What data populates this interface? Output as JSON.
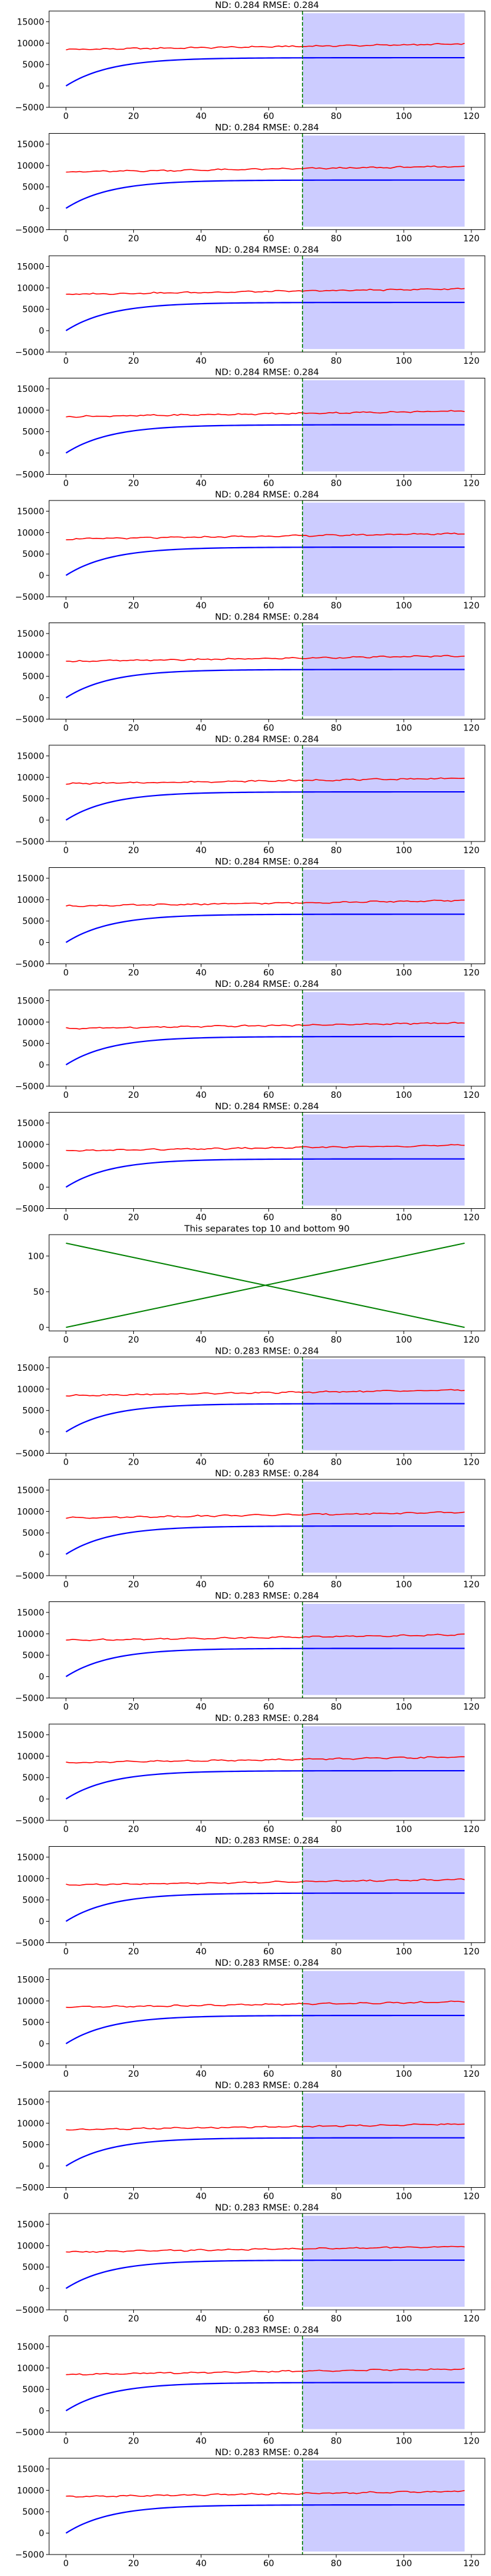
{
  "chart_data": [
    {
      "type": "line",
      "title": "ND:  0.284 RMSE:  0.284",
      "xlim": [
        -5,
        124
      ],
      "ylim": [
        -5000,
        17500
      ],
      "xticks": [
        "0",
        "20",
        "40",
        "60",
        "80",
        "100",
        "120"
      ],
      "yticks": [
        "−5000",
        "0",
        "5000",
        "10000",
        "15000"
      ],
      "forecast_start": 70,
      "shaded_x": [
        70,
        118
      ],
      "shaded_y": [
        -4300,
        17000
      ],
      "red_series": {
        "x_range": [
          0,
          118
        ],
        "start": 8500,
        "end": 9800
      },
      "blue_series": {
        "x_range": [
          0,
          118
        ],
        "start": 0,
        "plateau": 6600
      },
      "colors": {
        "red": "#ff0000",
        "blue": "#0000ff",
        "vline": "#008000",
        "shade": "#ccccff"
      }
    },
    {
      "type": "line",
      "title": "ND:  0.284 RMSE:  0.284",
      "xlim": [
        -5,
        124
      ],
      "ylim": [
        -5000,
        17500
      ],
      "xticks": [
        "0",
        "20",
        "40",
        "60",
        "80",
        "100",
        "120"
      ],
      "yticks": [
        "−5000",
        "0",
        "5000",
        "10000",
        "15000"
      ],
      "forecast_start": 70,
      "shaded_x": [
        70,
        118
      ],
      "shaded_y": [
        -4300,
        17000
      ],
      "red_series": {
        "x_range": [
          0,
          118
        ],
        "start": 8500,
        "end": 9800
      },
      "blue_series": {
        "x_range": [
          0,
          118
        ],
        "start": 0,
        "plateau": 6600
      },
      "colors": {
        "red": "#ff0000",
        "blue": "#0000ff",
        "vline": "#008000",
        "shade": "#ccccff"
      }
    },
    {
      "type": "line",
      "title": "ND:  0.284 RMSE:  0.284",
      "xlim": [
        -5,
        124
      ],
      "ylim": [
        -5000,
        17500
      ],
      "xticks": [
        "0",
        "20",
        "40",
        "60",
        "80",
        "100",
        "120"
      ],
      "yticks": [
        "−5000",
        "0",
        "5000",
        "10000",
        "15000"
      ],
      "forecast_start": 70,
      "shaded_x": [
        70,
        118
      ],
      "shaded_y": [
        -4300,
        17000
      ],
      "red_series": {
        "x_range": [
          0,
          118
        ],
        "start": 8500,
        "end": 9800
      },
      "blue_series": {
        "x_range": [
          0,
          118
        ],
        "start": 0,
        "plateau": 6600
      },
      "colors": {
        "red": "#ff0000",
        "blue": "#0000ff",
        "vline": "#008000",
        "shade": "#ccccff"
      }
    },
    {
      "type": "line",
      "title": "ND:  0.284 RMSE:  0.284",
      "xlim": [
        -5,
        124
      ],
      "ylim": [
        -5000,
        17500
      ],
      "xticks": [
        "0",
        "20",
        "40",
        "60",
        "80",
        "100",
        "120"
      ],
      "yticks": [
        "−5000",
        "0",
        "5000",
        "10000",
        "15000"
      ],
      "forecast_start": 70,
      "shaded_x": [
        70,
        118
      ],
      "shaded_y": [
        -4300,
        17000
      ],
      "red_series": {
        "x_range": [
          0,
          118
        ],
        "start": 8500,
        "end": 9800
      },
      "blue_series": {
        "x_range": [
          0,
          118
        ],
        "start": 0,
        "plateau": 6600
      },
      "colors": {
        "red": "#ff0000",
        "blue": "#0000ff",
        "vline": "#008000",
        "shade": "#ccccff"
      }
    },
    {
      "type": "line",
      "title": "ND:  0.284 RMSE:  0.284",
      "xlim": [
        -5,
        124
      ],
      "ylim": [
        -5000,
        17500
      ],
      "xticks": [
        "0",
        "20",
        "40",
        "60",
        "80",
        "100",
        "120"
      ],
      "yticks": [
        "−5000",
        "0",
        "5000",
        "10000",
        "15000"
      ],
      "forecast_start": 70,
      "shaded_x": [
        70,
        118
      ],
      "shaded_y": [
        -4300,
        17000
      ],
      "red_series": {
        "x_range": [
          0,
          118
        ],
        "start": 8500,
        "end": 9800
      },
      "blue_series": {
        "x_range": [
          0,
          118
        ],
        "start": 0,
        "plateau": 6600
      },
      "colors": {
        "red": "#ff0000",
        "blue": "#0000ff",
        "vline": "#008000",
        "shade": "#ccccff"
      }
    },
    {
      "type": "line",
      "title": "ND:  0.284 RMSE:  0.284",
      "xlim": [
        -5,
        124
      ],
      "ylim": [
        -5000,
        17500
      ],
      "xticks": [
        "0",
        "20",
        "40",
        "60",
        "80",
        "100",
        "120"
      ],
      "yticks": [
        "−5000",
        "0",
        "5000",
        "10000",
        "15000"
      ],
      "forecast_start": 70,
      "shaded_x": [
        70,
        118
      ],
      "shaded_y": [
        -4300,
        17000
      ],
      "red_series": {
        "x_range": [
          0,
          118
        ],
        "start": 8500,
        "end": 9800
      },
      "blue_series": {
        "x_range": [
          0,
          118
        ],
        "start": 0,
        "plateau": 6600
      },
      "colors": {
        "red": "#ff0000",
        "blue": "#0000ff",
        "vline": "#008000",
        "shade": "#ccccff"
      }
    },
    {
      "type": "line",
      "title": "ND:  0.284 RMSE:  0.284",
      "xlim": [
        -5,
        124
      ],
      "ylim": [
        -5000,
        17500
      ],
      "xticks": [
        "0",
        "20",
        "40",
        "60",
        "80",
        "100",
        "120"
      ],
      "yticks": [
        "−5000",
        "0",
        "5000",
        "10000",
        "15000"
      ],
      "forecast_start": 70,
      "shaded_x": [
        70,
        118
      ],
      "shaded_y": [
        -4300,
        17000
      ],
      "red_series": {
        "x_range": [
          0,
          118
        ],
        "start": 8500,
        "end": 9800
      },
      "blue_series": {
        "x_range": [
          0,
          118
        ],
        "start": 0,
        "plateau": 6600
      },
      "colors": {
        "red": "#ff0000",
        "blue": "#0000ff",
        "vline": "#008000",
        "shade": "#ccccff"
      }
    },
    {
      "type": "line",
      "title": "ND:  0.284 RMSE:  0.284",
      "xlim": [
        -5,
        124
      ],
      "ylim": [
        -5000,
        17500
      ],
      "xticks": [
        "0",
        "20",
        "40",
        "60",
        "80",
        "100",
        "120"
      ],
      "yticks": [
        "−5000",
        "0",
        "5000",
        "10000",
        "15000"
      ],
      "forecast_start": 70,
      "shaded_x": [
        70,
        118
      ],
      "shaded_y": [
        -4300,
        17000
      ],
      "red_series": {
        "x_range": [
          0,
          118
        ],
        "start": 8500,
        "end": 9800
      },
      "blue_series": {
        "x_range": [
          0,
          118
        ],
        "start": 0,
        "plateau": 6600
      },
      "colors": {
        "red": "#ff0000",
        "blue": "#0000ff",
        "vline": "#008000",
        "shade": "#ccccff"
      }
    },
    {
      "type": "line",
      "title": "ND:  0.284 RMSE:  0.284",
      "xlim": [
        -5,
        124
      ],
      "ylim": [
        -5000,
        17500
      ],
      "xticks": [
        "0",
        "20",
        "40",
        "60",
        "80",
        "100",
        "120"
      ],
      "yticks": [
        "−5000",
        "0",
        "5000",
        "10000",
        "15000"
      ],
      "forecast_start": 70,
      "shaded_x": [
        70,
        118
      ],
      "shaded_y": [
        -4300,
        17000
      ],
      "red_series": {
        "x_range": [
          0,
          118
        ],
        "start": 8500,
        "end": 9800
      },
      "blue_series": {
        "x_range": [
          0,
          118
        ],
        "start": 0,
        "plateau": 6600
      },
      "colors": {
        "red": "#ff0000",
        "blue": "#0000ff",
        "vline": "#008000",
        "shade": "#ccccff"
      }
    },
    {
      "type": "line",
      "title": "ND:  0.284 RMSE:  0.284",
      "xlim": [
        -5,
        124
      ],
      "ylim": [
        -5000,
        17500
      ],
      "xticks": [
        "0",
        "20",
        "40",
        "60",
        "80",
        "100",
        "120"
      ],
      "yticks": [
        "−5000",
        "0",
        "5000",
        "10000",
        "15000"
      ],
      "forecast_start": 70,
      "shaded_x": [
        70,
        118
      ],
      "shaded_y": [
        -4300,
        17000
      ],
      "red_series": {
        "x_range": [
          0,
          118
        ],
        "start": 8500,
        "end": 9800
      },
      "blue_series": {
        "x_range": [
          0,
          118
        ],
        "start": 0,
        "plateau": 6600
      },
      "colors": {
        "red": "#ff0000",
        "blue": "#0000ff",
        "vline": "#008000",
        "shade": "#ccccff"
      }
    },
    {
      "type": "line",
      "title": "This separates top 10 and bottom 90",
      "xlim": [
        -5,
        124
      ],
      "ylim": [
        -5,
        130
      ],
      "xticks": [
        "0",
        "20",
        "40",
        "60",
        "80",
        "100",
        "120"
      ],
      "yticks": [
        "0",
        "50",
        "100"
      ],
      "series": [
        {
          "x": [
            0,
            118
          ],
          "values": [
            0,
            118
          ]
        },
        {
          "x": [
            0,
            118
          ],
          "values": [
            118,
            0
          ]
        }
      ],
      "colors": {
        "line": "#008000"
      }
    },
    {
      "type": "line",
      "title": "ND:  0.283 RMSE:  0.284",
      "xlim": [
        -5,
        124
      ],
      "ylim": [
        -5000,
        17500
      ],
      "xticks": [
        "0",
        "20",
        "40",
        "60",
        "80",
        "100",
        "120"
      ],
      "yticks": [
        "−5000",
        "0",
        "5000",
        "10000",
        "15000"
      ],
      "forecast_start": 70,
      "shaded_x": [
        70,
        118
      ],
      "shaded_y": [
        -4300,
        17000
      ],
      "red_series": {
        "x_range": [
          0,
          118
        ],
        "start": 8500,
        "end": 9800
      },
      "blue_series": {
        "x_range": [
          0,
          118
        ],
        "start": 0,
        "plateau": 6600
      },
      "colors": {
        "red": "#ff0000",
        "blue": "#0000ff",
        "vline": "#008000",
        "shade": "#ccccff"
      }
    },
    {
      "type": "line",
      "title": "ND:  0.283 RMSE:  0.284",
      "xlim": [
        -5,
        124
      ],
      "ylim": [
        -5000,
        17500
      ],
      "xticks": [
        "0",
        "20",
        "40",
        "60",
        "80",
        "100",
        "120"
      ],
      "yticks": [
        "−5000",
        "0",
        "5000",
        "10000",
        "15000"
      ],
      "forecast_start": 70,
      "shaded_x": [
        70,
        118
      ],
      "shaded_y": [
        -4300,
        17000
      ],
      "red_series": {
        "x_range": [
          0,
          118
        ],
        "start": 8500,
        "end": 9800
      },
      "blue_series": {
        "x_range": [
          0,
          118
        ],
        "start": 0,
        "plateau": 6600
      },
      "colors": {
        "red": "#ff0000",
        "blue": "#0000ff",
        "vline": "#008000",
        "shade": "#ccccff"
      }
    },
    {
      "type": "line",
      "title": "ND:  0.283 RMSE:  0.284",
      "xlim": [
        -5,
        124
      ],
      "ylim": [
        -5000,
        17500
      ],
      "xticks": [
        "0",
        "20",
        "40",
        "60",
        "80",
        "100",
        "120"
      ],
      "yticks": [
        "−5000",
        "0",
        "5000",
        "10000",
        "15000"
      ],
      "forecast_start": 70,
      "shaded_x": [
        70,
        118
      ],
      "shaded_y": [
        -4300,
        17000
      ],
      "red_series": {
        "x_range": [
          0,
          118
        ],
        "start": 8500,
        "end": 9800
      },
      "blue_series": {
        "x_range": [
          0,
          118
        ],
        "start": 0,
        "plateau": 6600
      },
      "colors": {
        "red": "#ff0000",
        "blue": "#0000ff",
        "vline": "#008000",
        "shade": "#ccccff"
      }
    },
    {
      "type": "line",
      "title": "ND:  0.283 RMSE:  0.284",
      "xlim": [
        -5,
        124
      ],
      "ylim": [
        -5000,
        17500
      ],
      "xticks": [
        "0",
        "20",
        "40",
        "60",
        "80",
        "100",
        "120"
      ],
      "yticks": [
        "−5000",
        "0",
        "5000",
        "10000",
        "15000"
      ],
      "forecast_start": 70,
      "shaded_x": [
        70,
        118
      ],
      "shaded_y": [
        -4300,
        17000
      ],
      "red_series": {
        "x_range": [
          0,
          118
        ],
        "start": 8500,
        "end": 9800
      },
      "blue_series": {
        "x_range": [
          0,
          118
        ],
        "start": 0,
        "plateau": 6600
      },
      "colors": {
        "red": "#ff0000",
        "blue": "#0000ff",
        "vline": "#008000",
        "shade": "#ccccff"
      }
    },
    {
      "type": "line",
      "title": "ND:  0.283 RMSE:  0.284",
      "xlim": [
        -5,
        124
      ],
      "ylim": [
        -5000,
        17500
      ],
      "xticks": [
        "0",
        "20",
        "40",
        "60",
        "80",
        "100",
        "120"
      ],
      "yticks": [
        "−5000",
        "0",
        "5000",
        "10000",
        "15000"
      ],
      "forecast_start": 70,
      "shaded_x": [
        70,
        118
      ],
      "shaded_y": [
        -4300,
        17000
      ],
      "red_series": {
        "x_range": [
          0,
          118
        ],
        "start": 8500,
        "end": 9800
      },
      "blue_series": {
        "x_range": [
          0,
          118
        ],
        "start": 0,
        "plateau": 6600
      },
      "colors": {
        "red": "#ff0000",
        "blue": "#0000ff",
        "vline": "#008000",
        "shade": "#ccccff"
      }
    },
    {
      "type": "line",
      "title": "ND:  0.283 RMSE:  0.284",
      "xlim": [
        -5,
        124
      ],
      "ylim": [
        -5000,
        17500
      ],
      "xticks": [
        "0",
        "20",
        "40",
        "60",
        "80",
        "100",
        "120"
      ],
      "yticks": [
        "−5000",
        "0",
        "5000",
        "10000",
        "15000"
      ],
      "forecast_start": 70,
      "shaded_x": [
        70,
        118
      ],
      "shaded_y": [
        -4300,
        17000
      ],
      "red_series": {
        "x_range": [
          0,
          118
        ],
        "start": 8500,
        "end": 9800
      },
      "blue_series": {
        "x_range": [
          0,
          118
        ],
        "start": 0,
        "plateau": 6600
      },
      "colors": {
        "red": "#ff0000",
        "blue": "#0000ff",
        "vline": "#008000",
        "shade": "#ccccff"
      }
    },
    {
      "type": "line",
      "title": "ND:  0.283 RMSE:  0.284",
      "xlim": [
        -5,
        124
      ],
      "ylim": [
        -5000,
        17500
      ],
      "xticks": [
        "0",
        "20",
        "40",
        "60",
        "80",
        "100",
        "120"
      ],
      "yticks": [
        "−5000",
        "0",
        "5000",
        "10000",
        "15000"
      ],
      "forecast_start": 70,
      "shaded_x": [
        70,
        118
      ],
      "shaded_y": [
        -4300,
        17000
      ],
      "red_series": {
        "x_range": [
          0,
          118
        ],
        "start": 8500,
        "end": 9800
      },
      "blue_series": {
        "x_range": [
          0,
          118
        ],
        "start": 0,
        "plateau": 6600
      },
      "colors": {
        "red": "#ff0000",
        "blue": "#0000ff",
        "vline": "#008000",
        "shade": "#ccccff"
      }
    },
    {
      "type": "line",
      "title": "ND:  0.283 RMSE:  0.284",
      "xlim": [
        -5,
        124
      ],
      "ylim": [
        -5000,
        17500
      ],
      "xticks": [
        "0",
        "20",
        "40",
        "60",
        "80",
        "100",
        "120"
      ],
      "yticks": [
        "−5000",
        "0",
        "5000",
        "10000",
        "15000"
      ],
      "forecast_start": 70,
      "shaded_x": [
        70,
        118
      ],
      "shaded_y": [
        -4300,
        17000
      ],
      "red_series": {
        "x_range": [
          0,
          118
        ],
        "start": 8500,
        "end": 9800
      },
      "blue_series": {
        "x_range": [
          0,
          118
        ],
        "start": 0,
        "plateau": 6600
      },
      "colors": {
        "red": "#ff0000",
        "blue": "#0000ff",
        "vline": "#008000",
        "shade": "#ccccff"
      }
    },
    {
      "type": "line",
      "title": "ND:  0.283 RMSE:  0.284",
      "xlim": [
        -5,
        124
      ],
      "ylim": [
        -5000,
        17500
      ],
      "xticks": [
        "0",
        "20",
        "40",
        "60",
        "80",
        "100",
        "120"
      ],
      "yticks": [
        "−5000",
        "0",
        "5000",
        "10000",
        "15000"
      ],
      "forecast_start": 70,
      "shaded_x": [
        70,
        118
      ],
      "shaded_y": [
        -4300,
        17000
      ],
      "red_series": {
        "x_range": [
          0,
          118
        ],
        "start": 8500,
        "end": 9800
      },
      "blue_series": {
        "x_range": [
          0,
          118
        ],
        "start": 0,
        "plateau": 6600
      },
      "colors": {
        "red": "#ff0000",
        "blue": "#0000ff",
        "vline": "#008000",
        "shade": "#ccccff"
      }
    },
    {
      "type": "line",
      "title": "ND:  0.283 RMSE:  0.284",
      "xlim": [
        -5,
        124
      ],
      "ylim": [
        -5000,
        17500
      ],
      "xticks": [
        "0",
        "20",
        "40",
        "60",
        "80",
        "100",
        "120"
      ],
      "yticks": [
        "−5000",
        "0",
        "5000",
        "10000",
        "15000"
      ],
      "forecast_start": 70,
      "shaded_x": [
        70,
        118
      ],
      "shaded_y": [
        -4300,
        17000
      ],
      "red_series": {
        "x_range": [
          0,
          118
        ],
        "start": 8500,
        "end": 9800
      },
      "blue_series": {
        "x_range": [
          0,
          118
        ],
        "start": 0,
        "plateau": 6600
      },
      "colors": {
        "red": "#ff0000",
        "blue": "#0000ff",
        "vline": "#008000",
        "shade": "#ccccff"
      }
    }
  ]
}
